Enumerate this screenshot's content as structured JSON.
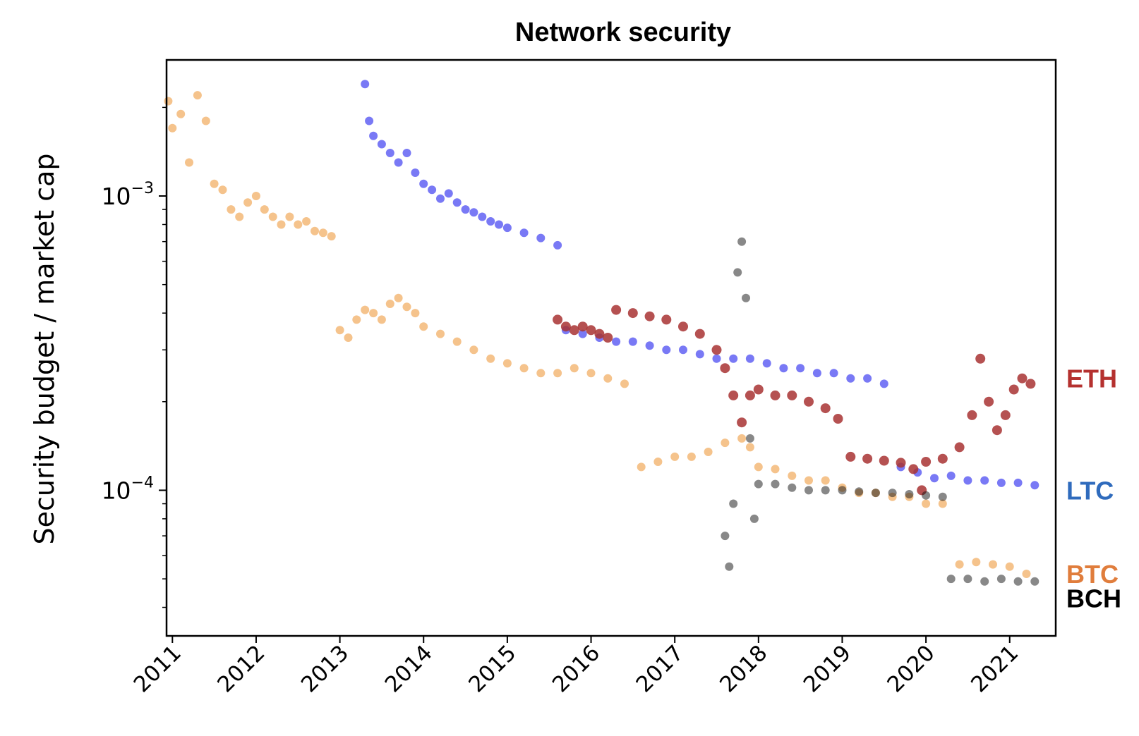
{
  "chart_data": {
    "type": "scatter",
    "title": "Network security",
    "xlabel": "",
    "ylabel": "Security budget / market cap",
    "yscale": "log",
    "ylim": [
      3.2e-05,
      0.0029
    ],
    "xlim": [
      2010.93,
      2021.55
    ],
    "grid": false,
    "x_ticks": [
      {
        "value": 2011,
        "label": "2011"
      },
      {
        "value": 2012,
        "label": "2012"
      },
      {
        "value": 2013,
        "label": "2013"
      },
      {
        "value": 2014,
        "label": "2014"
      },
      {
        "value": 2015,
        "label": "2015"
      },
      {
        "value": 2016,
        "label": "2016"
      },
      {
        "value": 2017,
        "label": "2017"
      },
      {
        "value": 2018,
        "label": "2018"
      },
      {
        "value": 2019,
        "label": "2019"
      },
      {
        "value": 2020,
        "label": "2020"
      },
      {
        "value": 2021,
        "label": "2021"
      }
    ],
    "y_ticks": [
      {
        "value": 0.001,
        "base": "10",
        "exp": "−3"
      },
      {
        "value": 0.0001,
        "base": "10",
        "exp": "−4"
      }
    ],
    "legend_placement": "right-margin labels",
    "series": [
      {
        "name": "BTC",
        "color": "#ee9b3f",
        "label_color": "#e07d3c",
        "label_y": 5.2e-05,
        "points": [
          [
            2010.95,
            0.0021
          ],
          [
            2011.0,
            0.0017
          ],
          [
            2011.1,
            0.0019
          ],
          [
            2011.2,
            0.0013
          ],
          [
            2011.3,
            0.0022
          ],
          [
            2011.4,
            0.0018
          ],
          [
            2011.5,
            0.0011
          ],
          [
            2011.6,
            0.00105
          ],
          [
            2011.7,
            0.0009
          ],
          [
            2011.8,
            0.00085
          ],
          [
            2011.9,
            0.00095
          ],
          [
            2012.0,
            0.001
          ],
          [
            2012.1,
            0.0009
          ],
          [
            2012.2,
            0.00085
          ],
          [
            2012.3,
            0.0008
          ],
          [
            2012.4,
            0.00085
          ],
          [
            2012.5,
            0.0008
          ],
          [
            2012.6,
            0.00082
          ],
          [
            2012.7,
            0.00076
          ],
          [
            2012.8,
            0.00075
          ],
          [
            2012.9,
            0.00073
          ],
          [
            2013.0,
            0.00035
          ],
          [
            2013.1,
            0.00033
          ],
          [
            2013.2,
            0.00038
          ],
          [
            2013.3,
            0.00041
          ],
          [
            2013.4,
            0.0004
          ],
          [
            2013.5,
            0.00038
          ],
          [
            2013.6,
            0.00043
          ],
          [
            2013.7,
            0.00045
          ],
          [
            2013.8,
            0.00042
          ],
          [
            2013.9,
            0.0004
          ],
          [
            2014.0,
            0.00036
          ],
          [
            2014.2,
            0.00034
          ],
          [
            2014.4,
            0.00032
          ],
          [
            2014.6,
            0.0003
          ],
          [
            2014.8,
            0.00028
          ],
          [
            2015.0,
            0.00027
          ],
          [
            2015.2,
            0.00026
          ],
          [
            2015.4,
            0.00025
          ],
          [
            2015.6,
            0.00025
          ],
          [
            2015.8,
            0.00026
          ],
          [
            2016.0,
            0.00025
          ],
          [
            2016.2,
            0.00024
          ],
          [
            2016.4,
            0.00023
          ],
          [
            2016.6,
            0.00012
          ],
          [
            2016.8,
            0.000125
          ],
          [
            2017.0,
            0.00013
          ],
          [
            2017.2,
            0.00013
          ],
          [
            2017.4,
            0.000135
          ],
          [
            2017.6,
            0.000145
          ],
          [
            2017.8,
            0.00015
          ],
          [
            2017.9,
            0.00014
          ],
          [
            2018.0,
            0.00012
          ],
          [
            2018.2,
            0.000118
          ],
          [
            2018.4,
            0.000112
          ],
          [
            2018.6,
            0.000108
          ],
          [
            2018.8,
            0.000108
          ],
          [
            2019.0,
            0.000102
          ],
          [
            2019.2,
            9.8e-05
          ],
          [
            2019.4,
            9.8e-05
          ],
          [
            2019.6,
            9.5e-05
          ],
          [
            2019.8,
            9.5e-05
          ],
          [
            2020.0,
            9e-05
          ],
          [
            2020.2,
            9e-05
          ],
          [
            2020.4,
            5.6e-05
          ],
          [
            2020.6,
            5.7e-05
          ],
          [
            2020.8,
            5.6e-05
          ],
          [
            2021.0,
            5.5e-05
          ],
          [
            2021.2,
            5.2e-05
          ]
        ]
      },
      {
        "name": "LTC",
        "color": "#1f1fee",
        "label_color": "#2f6bbd",
        "label_y": 0.0001,
        "points": [
          [
            2013.3,
            0.0024
          ],
          [
            2013.35,
            0.0018
          ],
          [
            2013.4,
            0.0016
          ],
          [
            2013.5,
            0.0015
          ],
          [
            2013.6,
            0.0014
          ],
          [
            2013.7,
            0.0013
          ],
          [
            2013.8,
            0.0014
          ],
          [
            2013.9,
            0.0012
          ],
          [
            2014.0,
            0.0011
          ],
          [
            2014.1,
            0.00105
          ],
          [
            2014.2,
            0.00098
          ],
          [
            2014.3,
            0.00102
          ],
          [
            2014.4,
            0.00095
          ],
          [
            2014.5,
            0.0009
          ],
          [
            2014.6,
            0.00088
          ],
          [
            2014.7,
            0.00085
          ],
          [
            2014.8,
            0.00082
          ],
          [
            2014.9,
            0.0008
          ],
          [
            2015.0,
            0.00078
          ],
          [
            2015.2,
            0.00075
          ],
          [
            2015.4,
            0.00072
          ],
          [
            2015.6,
            0.00068
          ],
          [
            2015.7,
            0.00035
          ],
          [
            2015.9,
            0.00034
          ],
          [
            2016.1,
            0.00033
          ],
          [
            2016.3,
            0.00032
          ],
          [
            2016.5,
            0.00032
          ],
          [
            2016.7,
            0.00031
          ],
          [
            2016.9,
            0.0003
          ],
          [
            2017.1,
            0.0003
          ],
          [
            2017.3,
            0.00029
          ],
          [
            2017.5,
            0.00028
          ],
          [
            2017.7,
            0.00028
          ],
          [
            2017.9,
            0.00028
          ],
          [
            2018.1,
            0.00027
          ],
          [
            2018.3,
            0.00026
          ],
          [
            2018.5,
            0.00026
          ],
          [
            2018.7,
            0.00025
          ],
          [
            2018.9,
            0.00025
          ],
          [
            2019.1,
            0.00024
          ],
          [
            2019.3,
            0.00024
          ],
          [
            2019.5,
            0.00023
          ],
          [
            2019.7,
            0.00012
          ],
          [
            2019.9,
            0.000115
          ],
          [
            2020.1,
            0.00011
          ],
          [
            2020.3,
            0.000112
          ],
          [
            2020.5,
            0.000108
          ],
          [
            2020.7,
            0.000108
          ],
          [
            2020.9,
            0.000106
          ],
          [
            2021.1,
            0.000106
          ],
          [
            2021.3,
            0.000104
          ]
        ]
      },
      {
        "name": "ETH",
        "color": "#a83232",
        "label_color": "#b5312f",
        "label_y": 0.00024,
        "points": [
          [
            2015.6,
            0.00038
          ],
          [
            2015.7,
            0.00036
          ],
          [
            2015.8,
            0.00035
          ],
          [
            2015.9,
            0.00036
          ],
          [
            2016.0,
            0.00035
          ],
          [
            2016.1,
            0.00034
          ],
          [
            2016.2,
            0.00033
          ],
          [
            2016.3,
            0.00041
          ],
          [
            2016.5,
            0.0004
          ],
          [
            2016.7,
            0.00039
          ],
          [
            2016.9,
            0.00038
          ],
          [
            2017.1,
            0.00036
          ],
          [
            2017.3,
            0.00034
          ],
          [
            2017.5,
            0.0003
          ],
          [
            2017.6,
            0.00026
          ],
          [
            2017.7,
            0.00021
          ],
          [
            2017.8,
            0.00017
          ],
          [
            2017.9,
            0.00021
          ],
          [
            2018.0,
            0.00022
          ],
          [
            2018.2,
            0.00021
          ],
          [
            2018.4,
            0.00021
          ],
          [
            2018.6,
            0.0002
          ],
          [
            2018.8,
            0.00019
          ],
          [
            2018.95,
            0.000175
          ],
          [
            2019.1,
            0.00013
          ],
          [
            2019.3,
            0.000128
          ],
          [
            2019.5,
            0.000126
          ],
          [
            2019.7,
            0.000124
          ],
          [
            2019.85,
            0.000118
          ],
          [
            2019.95,
            0.0001
          ],
          [
            2020.0,
            0.000125
          ],
          [
            2020.2,
            0.000128
          ],
          [
            2020.4,
            0.00014
          ],
          [
            2020.55,
            0.00018
          ],
          [
            2020.65,
            0.00028
          ],
          [
            2020.75,
            0.0002
          ],
          [
            2020.85,
            0.00016
          ],
          [
            2020.95,
            0.00018
          ],
          [
            2021.05,
            0.00022
          ],
          [
            2021.15,
            0.00024
          ],
          [
            2021.25,
            0.00023
          ]
        ]
      },
      {
        "name": "BCH",
        "color": "#111111",
        "label_color": "#000000",
        "label_y": 4.3e-05,
        "points": [
          [
            2017.6,
            7e-05
          ],
          [
            2017.65,
            5.5e-05
          ],
          [
            2017.7,
            9e-05
          ],
          [
            2017.75,
            0.00055
          ],
          [
            2017.8,
            0.0007
          ],
          [
            2017.85,
            0.00045
          ],
          [
            2017.9,
            0.00015
          ],
          [
            2017.95,
            8e-05
          ],
          [
            2018.0,
            0.000105
          ],
          [
            2018.2,
            0.000105
          ],
          [
            2018.4,
            0.000102
          ],
          [
            2018.6,
            0.0001
          ],
          [
            2018.8,
            0.0001
          ],
          [
            2019.0,
            0.0001
          ],
          [
            2019.2,
            9.9e-05
          ],
          [
            2019.4,
            9.8e-05
          ],
          [
            2019.6,
            9.8e-05
          ],
          [
            2019.8,
            9.7e-05
          ],
          [
            2020.0,
            9.6e-05
          ],
          [
            2020.2,
            9.5e-05
          ],
          [
            2020.3,
            5e-05
          ],
          [
            2020.5,
            5e-05
          ],
          [
            2020.7,
            4.9e-05
          ],
          [
            2020.9,
            5e-05
          ],
          [
            2021.1,
            4.9e-05
          ],
          [
            2021.3,
            4.9e-05
          ]
        ]
      }
    ]
  }
}
